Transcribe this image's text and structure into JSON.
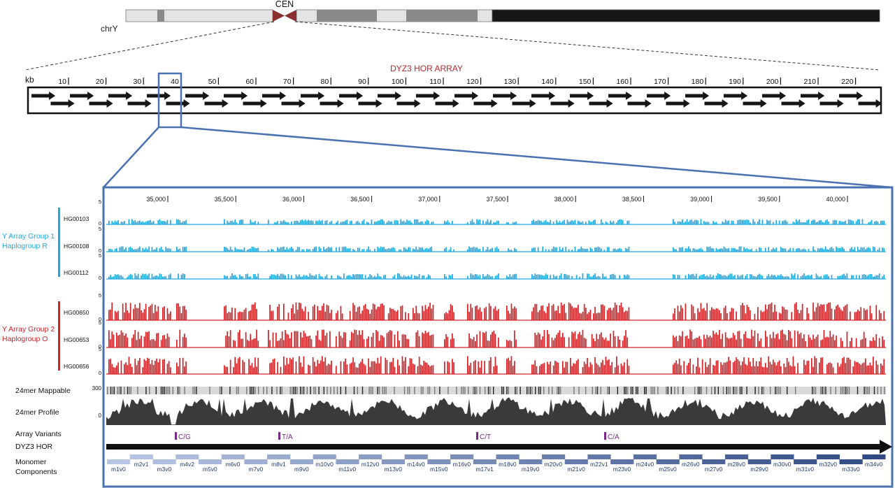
{
  "chromosome": {
    "name": "chrY",
    "centromere_label": "CEN",
    "band_colors": {
      "light": "#e4e4e4",
      "mid": "#8a8a8a",
      "dark": "#161616",
      "centromere": "#8b2e2e"
    }
  },
  "array": {
    "title": "DYZ3  HOR ARRAY",
    "kb_label": "kb",
    "ticks": [
      "10",
      "20",
      "30",
      "40",
      "50",
      "60",
      "70",
      "80",
      "90",
      "100",
      "110",
      "120",
      "130",
      "140",
      "150",
      "160",
      "170",
      "180",
      "190",
      "200",
      "210",
      "220"
    ],
    "title_color": "#b0292b"
  },
  "zoom": {
    "border_color": "#4a72b0",
    "ticks": [
      "35,000",
      "35,500",
      "36,000",
      "36,500",
      "37,000",
      "37,500",
      "38,000",
      "38,500",
      "39,000",
      "39,500",
      "40,000"
    ]
  },
  "groups": [
    {
      "label_line1": "Y Array Group 1",
      "label_line2": "Haplogroup R",
      "color": "#1fa9e1",
      "samples": [
        "HG00103",
        "HG00108",
        "HG00112"
      ]
    },
    {
      "label_line1": "Y Array Group 2",
      "label_line2": "Haplogroup O",
      "color": "#d22226",
      "samples": [
        "HG00650",
        "HG00653",
        "HG00656"
      ]
    }
  ],
  "track_axis": {
    "max": "5",
    "min": "0"
  },
  "mappable": {
    "label": "24mer Mappable",
    "axis": "300"
  },
  "profile": {
    "label": "24mer Profile",
    "axis": "0"
  },
  "variants": {
    "label": "Array Variants",
    "color": "#7b2a8c",
    "items": [
      "C/G",
      "T/A",
      "C/T",
      "C/A"
    ]
  },
  "hor": {
    "label": "DYZ3 HOR"
  },
  "monomers": {
    "label_line1": "Monomer",
    "label_line2": "Components",
    "items": [
      "m1v0",
      "m2v1",
      "m3v0",
      "m4v2",
      "m5v0",
      "m6v0",
      "m7v0",
      "m8v1",
      "m9v0",
      "m10v0",
      "m11v0",
      "m12v0",
      "m13v0",
      "m14v0",
      "m15v0",
      "m16v0",
      "m17v1",
      "m18v0",
      "m19v0",
      "m20v0",
      "m21v0",
      "m22v1",
      "m23v0",
      "m24v0",
      "m25v0",
      "m26v0",
      "m27v0",
      "m28v0",
      "m29v0",
      "m30v0",
      "m31v0",
      "m32v0",
      "m33v0",
      "m34v0"
    ]
  }
}
